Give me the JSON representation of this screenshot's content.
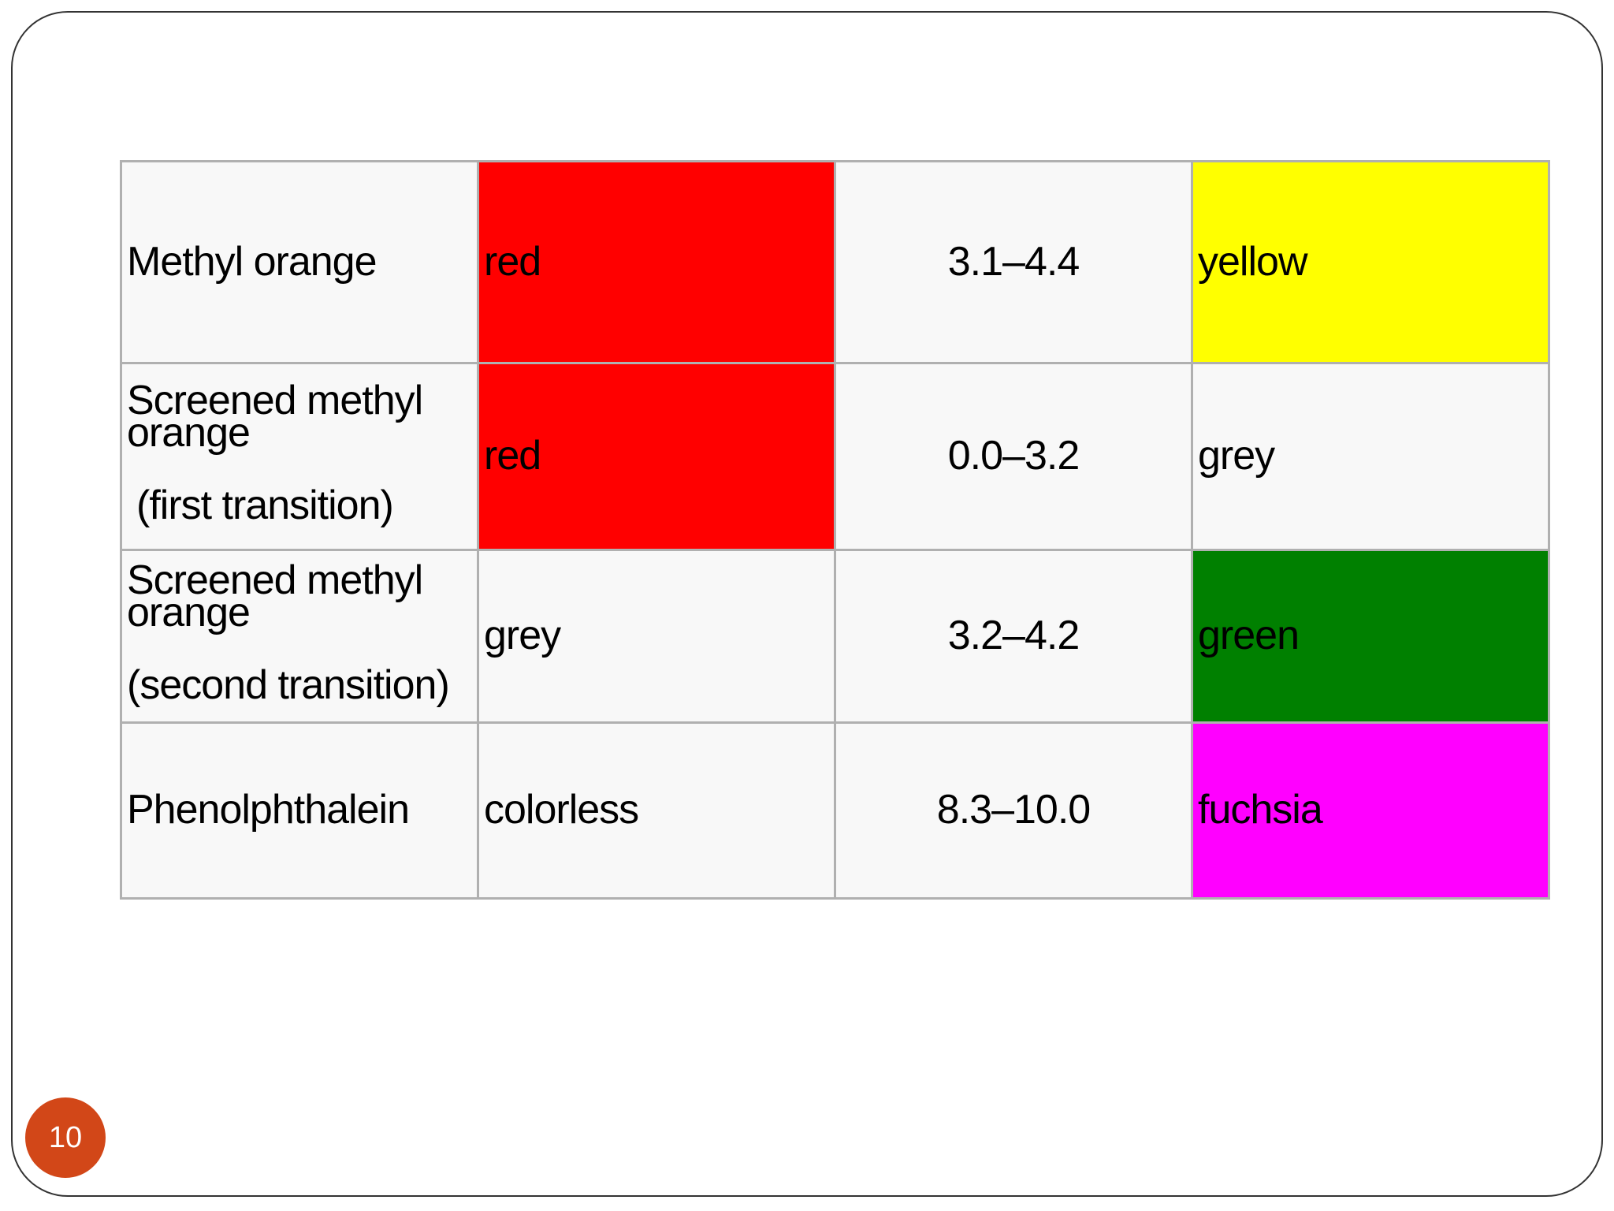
{
  "slide": {
    "page_number": "10"
  },
  "table": {
    "rows": [
      {
        "name_lines": [
          "Methyl orange"
        ],
        "low_color_text": "red",
        "low_color_bg": "#ff0000",
        "range": "3.1–4.4",
        "high_color_text": "yellow",
        "high_color_bg": "#ffff00"
      },
      {
        "name_lines": [
          "Screened methyl",
          "orange",
          "(first transition)"
        ],
        "low_color_text": "red",
        "low_color_bg": "#ff0000",
        "range": "0.0–3.2",
        "high_color_text": "grey",
        "high_color_bg": "#f8f8f8"
      },
      {
        "name_lines": [
          "Screened methyl",
          "orange",
          "(second transition)"
        ],
        "low_color_text": "grey",
        "low_color_bg": "#f8f8f8",
        "range": "3.2–4.2",
        "high_color_text": "green",
        "high_color_bg": "#008000"
      },
      {
        "name_lines": [
          "Phenolphthalein"
        ],
        "low_color_text": "colorless",
        "low_color_bg": "#f8f8f8",
        "range": "8.3–10.0",
        "high_color_text": "fuchsia",
        "high_color_bg": "#ff00ff"
      }
    ]
  }
}
